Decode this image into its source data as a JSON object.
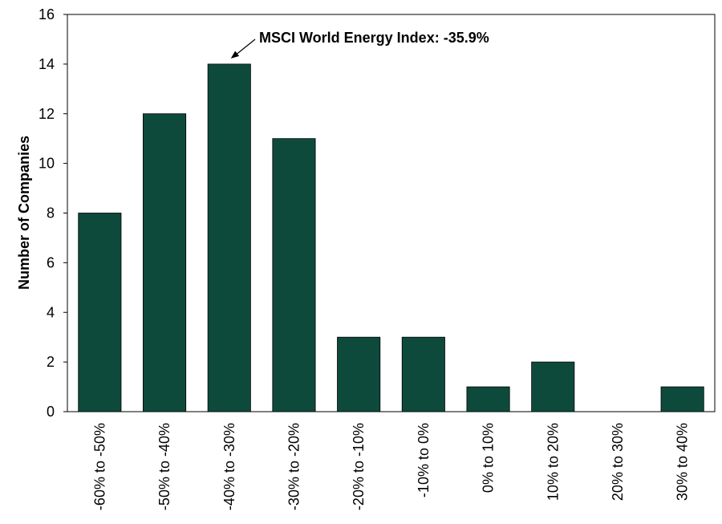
{
  "chart_data": {
    "type": "bar",
    "categories": [
      "-60% to -50%",
      "-50% to -40%",
      "-40% to -30%",
      "-30% to -20%",
      "-20% to -10%",
      "-10% to 0%",
      "0% to 10%",
      "10% to 20%",
      "20% to 30%",
      "30% to 40%"
    ],
    "values": [
      8,
      12,
      14,
      11,
      3,
      3,
      1,
      2,
      0,
      1
    ],
    "title": "",
    "xlabel": "",
    "ylabel": "Number of Companies",
    "ylim": [
      0,
      16
    ],
    "yticks": [
      0,
      2,
      4,
      6,
      8,
      10,
      12,
      14,
      16
    ],
    "grid": false,
    "bar_color": "#0d4a3c",
    "annotation": {
      "text": "MSCI World Energy Index: -35.9%",
      "points_to_category": "-40% to -30%"
    }
  }
}
